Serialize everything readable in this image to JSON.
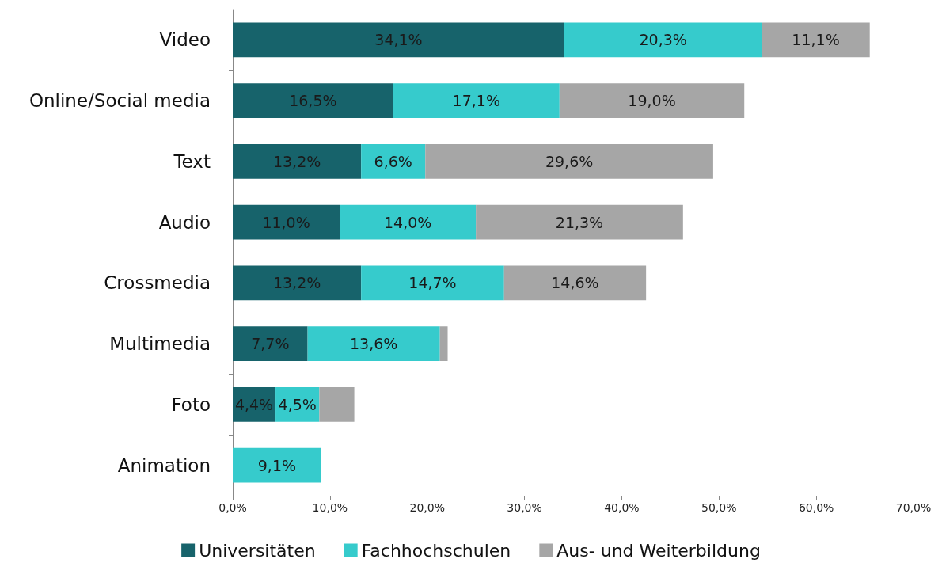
{
  "chart_data": {
    "type": "bar",
    "orientation": "horizontal",
    "stacked": true,
    "categories": [
      "Video",
      "Online/Social media",
      "Text",
      "Audio",
      "Crossmedia",
      "Multimedia",
      "Foto",
      "Animation"
    ],
    "series": [
      {
        "name": "Universitäten",
        "color": "#17636b",
        "values": [
          34.1,
          16.5,
          13.2,
          11.0,
          13.2,
          7.7,
          4.4,
          null
        ],
        "value_labels": [
          "34,1%",
          "16,5%",
          "13,2%",
          "11,0%",
          "13,2%",
          "7,7%",
          "4,4%",
          null
        ]
      },
      {
        "name": "Fachhochschulen",
        "color": "#36cbcc",
        "values": [
          20.3,
          17.1,
          6.6,
          14.0,
          14.7,
          13.6,
          4.5,
          9.1
        ],
        "value_labels": [
          "20,3%",
          "17,1%",
          "6,6%",
          "14,0%",
          "14,7%",
          "13,6%",
          "4,5%",
          "9,1%"
        ]
      },
      {
        "name": "Aus- und Weiterbildung",
        "color": "#a6a6a6",
        "values": [
          11.1,
          19.0,
          29.6,
          21.3,
          14.6,
          0.8,
          3.6,
          null
        ],
        "value_labels": [
          "11,1%",
          "19,0%",
          "29,6%",
          "21,3%",
          "14,6%",
          null,
          null,
          null
        ]
      }
    ],
    "xlim": [
      0,
      70
    ],
    "xticks": [
      {
        "value": 0,
        "label": "0,0%"
      },
      {
        "value": 10,
        "label": "10,0%"
      },
      {
        "value": 20,
        "label": "20,0%"
      },
      {
        "value": 30,
        "label": "30,0%"
      },
      {
        "value": 40,
        "label": "40,0%"
      },
      {
        "value": 50,
        "label": "50,0%"
      },
      {
        "value": 60,
        "label": "60,0%"
      },
      {
        "value": 70,
        "label": "70,0%"
      }
    ],
    "grid": false,
    "legend": "bottom"
  }
}
